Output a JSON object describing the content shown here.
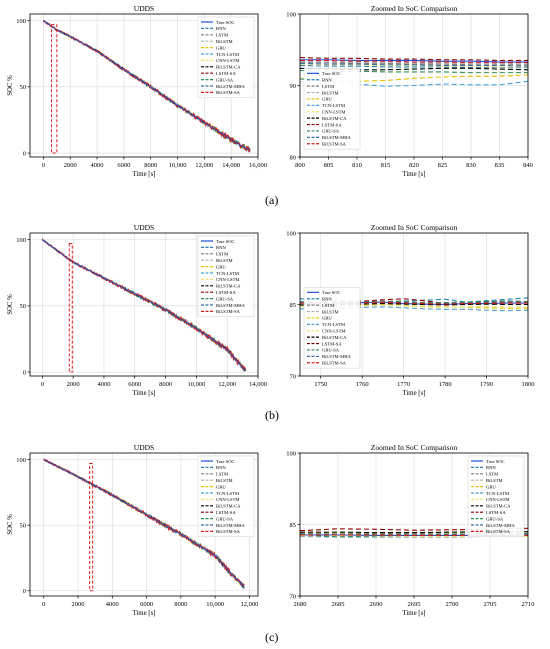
{
  "figure": {
    "sub_labels": [
      "(a)",
      "(b)",
      "(c)"
    ]
  },
  "chart_data": [
    {
      "id": "a-left",
      "type": "line",
      "title": "UDDS",
      "xlabel": "Time [s]",
      "ylabel": "SOC %",
      "xlim": [
        -1000,
        16000
      ],
      "ylim": [
        -3,
        105
      ],
      "xticks": [
        0,
        2000,
        4000,
        6000,
        8000,
        10000,
        12000,
        14000,
        16000
      ],
      "xtick_labels": [
        "0",
        "2000",
        "4000",
        "6000",
        "8000",
        "10,000",
        "12,000",
        "14,000",
        "16,000"
      ],
      "yticks": [
        0,
        50,
        100
      ],
      "ytick_labels": [
        "0",
        "50",
        "100"
      ],
      "grid": true,
      "legend_placement": "top-right",
      "series": [
        {
          "name": "True SOC",
          "points": [
            [
              0,
              100
            ],
            [
              1000,
              93
            ],
            [
              2000,
              88
            ],
            [
              4000,
              77
            ],
            [
              6000,
              63
            ],
            [
              8000,
              50
            ],
            [
              10000,
              36
            ],
            [
              12000,
              23
            ],
            [
              14000,
              10
            ],
            [
              15400,
              2
            ]
          ]
        }
      ],
      "zoom_box": {
        "x": [
          600,
          1000
        ],
        "y": [
          0,
          97
        ]
      }
    },
    {
      "id": "a-right",
      "type": "line",
      "title": "Zoomed In SoC Comparison",
      "xlabel": "Time [s]",
      "ylabel": "",
      "xlim": [
        800,
        840
      ],
      "ylim": [
        80,
        100
      ],
      "xticks": [
        800,
        805,
        810,
        815,
        820,
        825,
        830,
        835,
        840
      ],
      "xtick_labels": [
        "800",
        "805",
        "810",
        "815",
        "820",
        "825",
        "830",
        "835",
        "840"
      ],
      "yticks": [
        80,
        90,
        100
      ],
      "ytick_labels": [
        "80",
        "90",
        "100"
      ],
      "grid": true,
      "legend_placement": "left",
      "series": [
        {
          "name": "True SOC",
          "values": [
            93.6,
            93.6,
            93.5,
            93.5,
            93.5,
            93.4,
            93.4,
            93.3,
            93.3
          ]
        },
        {
          "name": "RNN",
          "values": [
            92.8,
            92.7,
            92.7,
            92.6,
            92.6,
            92.6,
            92.5,
            92.5,
            92.5
          ]
        },
        {
          "name": "LSTM",
          "values": [
            93.2,
            93.2,
            93.1,
            93.1,
            93.0,
            93.0,
            92.9,
            92.9,
            92.9
          ]
        },
        {
          "name": "BiLSTM",
          "values": [
            93.4,
            93.3,
            93.3,
            93.2,
            93.2,
            93.1,
            93.1,
            93.1,
            93.0
          ]
        },
        {
          "name": "GRU",
          "values": [
            91.0,
            90.8,
            90.6,
            90.7,
            91.0,
            91.2,
            91.3,
            91.3,
            91.5
          ]
        },
        {
          "name": "TCN-LSTM",
          "values": [
            90.9,
            90.6,
            90.2,
            89.9,
            90.0,
            90.2,
            90.1,
            90.1,
            90.6
          ]
        },
        {
          "name": "CNN-LSTM",
          "values": [
            93.0,
            92.9,
            92.9,
            92.8,
            92.8,
            92.7,
            92.7,
            92.6,
            92.6
          ]
        },
        {
          "name": "BiLSTM-CA",
          "values": [
            92.4,
            92.3,
            92.2,
            92.2,
            92.3,
            92.4,
            92.4,
            92.3,
            92.2
          ]
        },
        {
          "name": "LSTM-SA",
          "values": [
            93.9,
            93.8,
            93.8,
            93.7,
            93.7,
            93.6,
            93.6,
            93.5,
            93.5
          ]
        },
        {
          "name": "GRU-SA",
          "values": [
            92.1,
            92.0,
            92.0,
            91.9,
            91.9,
            91.9,
            91.8,
            91.8,
            91.8
          ]
        },
        {
          "name": "BiLSTM-MHA",
          "values": [
            93.1,
            93.0,
            93.0,
            92.9,
            92.9,
            92.8,
            92.8,
            92.8,
            92.7
          ]
        },
        {
          "name": "BiLSTM-SA",
          "values": [
            93.5,
            93.5,
            93.4,
            93.4,
            93.3,
            93.3,
            93.2,
            93.2,
            93.2
          ]
        }
      ]
    },
    {
      "id": "b-left",
      "type": "line",
      "title": "UDDS",
      "xlabel": "Time [s]",
      "ylabel": "SOC %",
      "xlim": [
        -800,
        14000
      ],
      "ylim": [
        -3,
        105
      ],
      "xticks": [
        0,
        2000,
        4000,
        6000,
        8000,
        10000,
        12000,
        14000
      ],
      "xtick_labels": [
        "0",
        "2000",
        "4000",
        "6000",
        "8000",
        "10,000",
        "12,000",
        "14,000"
      ],
      "yticks": [
        0,
        50,
        100
      ],
      "ytick_labels": [
        "0",
        "50",
        "100"
      ],
      "grid": true,
      "legend_placement": "top-right",
      "series": [
        {
          "name": "True SOC",
          "points": [
            [
              0,
              100
            ],
            [
              1750,
              85
            ],
            [
              2000,
              83
            ],
            [
              4000,
              71
            ],
            [
              6000,
              59
            ],
            [
              8000,
              47
            ],
            [
              10000,
              33
            ],
            [
              12000,
              17
            ],
            [
              13200,
              1
            ]
          ]
        }
      ],
      "zoom_box": {
        "x": [
          1750,
          1800
        ],
        "y": [
          0,
          97
        ]
      }
    },
    {
      "id": "b-right",
      "type": "line",
      "title": "Zoomed In SoC Comparison",
      "xlabel": "Time [s]",
      "ylabel": "",
      "xlim": [
        1745,
        1800
      ],
      "ylim": [
        70,
        100
      ],
      "xticks": [
        1750,
        1760,
        1770,
        1780,
        1790,
        1800
      ],
      "xtick_labels": [
        "1750",
        "1760",
        "1770",
        "1780",
        "1790",
        "1800"
      ],
      "yticks": [
        70,
        85,
        100
      ],
      "ytick_labels": [
        "70",
        "85",
        "100"
      ],
      "grid": true,
      "legend_placement": "left",
      "series": [
        {
          "name": "True SOC",
          "values": [
            85.2,
            85.1,
            85.2,
            85.4,
            85.5,
            85.2,
            85.1,
            85.0,
            85.2,
            85.2,
            85.3,
            85.3
          ]
        },
        {
          "name": "RNN",
          "values": [
            86.2,
            86.1,
            85.8,
            85.7,
            85.6,
            85.7,
            85.9,
            86.1,
            85.5,
            85.8,
            86.1,
            86.4
          ]
        },
        {
          "name": "LSTM",
          "values": [
            85.3,
            85.2,
            85.2,
            85.3,
            85.5,
            85.3,
            85.1,
            85.0,
            85.1,
            85.2,
            85.3,
            85.2
          ]
        },
        {
          "name": "BiLSTM",
          "values": [
            85.1,
            85.0,
            85.1,
            85.2,
            85.3,
            85.1,
            85.0,
            84.9,
            85.0,
            85.0,
            85.1,
            85.1
          ]
        },
        {
          "name": "GRU",
          "values": [
            84.7,
            84.6,
            84.7,
            84.9,
            85.0,
            84.8,
            84.6,
            84.5,
            84.4,
            84.3,
            84.2,
            84.2
          ]
        },
        {
          "name": "TCN-LSTM",
          "values": [
            84.1,
            84.0,
            84.2,
            84.4,
            84.5,
            84.3,
            84.1,
            84.0,
            84.0,
            83.8,
            83.7,
            83.8
          ]
        },
        {
          "name": "CNN-LSTM",
          "values": [
            84.8,
            84.7,
            84.6,
            84.7,
            84.9,
            84.7,
            84.5,
            84.4,
            84.5,
            84.6,
            84.5,
            84.5
          ]
        },
        {
          "name": "BiLSTM-CA",
          "values": [
            84.9,
            84.8,
            85.0,
            85.1,
            85.2,
            85.1,
            85.0,
            84.9,
            85.0,
            85.1,
            85.0,
            85.0
          ]
        },
        {
          "name": "LSTM-SA",
          "values": [
            85.5,
            85.4,
            85.5,
            85.7,
            86.0,
            86.2,
            85.8,
            85.2,
            85.4,
            85.6,
            85.7,
            85.6
          ]
        },
        {
          "name": "GRU-SA",
          "values": [
            85.6,
            85.5,
            85.6,
            85.6,
            85.7,
            85.6,
            85.4,
            85.4,
            85.5,
            85.6,
            85.7,
            85.6
          ]
        },
        {
          "name": "BiLSTM-MHA",
          "values": [
            85.4,
            85.3,
            85.4,
            85.5,
            85.6,
            85.4,
            85.2,
            85.2,
            85.3,
            85.4,
            85.5,
            85.4
          ]
        },
        {
          "name": "BiLSTM-SA",
          "values": [
            85.3,
            85.2,
            85.3,
            85.4,
            85.5,
            85.3,
            85.2,
            85.1,
            85.2,
            85.3,
            85.3,
            85.3
          ]
        }
      ]
    },
    {
      "id": "c-left",
      "type": "line",
      "title": "UDDS",
      "xlabel": "Time [s]",
      "ylabel": "SOC %",
      "xlim": [
        -800,
        12500
      ],
      "ylim": [
        -4,
        105
      ],
      "xticks": [
        0,
        2000,
        4000,
        6000,
        8000,
        10000,
        12000
      ],
      "xtick_labels": [
        "0",
        "2000",
        "4000",
        "6000",
        "8000",
        "10,000",
        "12,000"
      ],
      "yticks": [
        0,
        50,
        100
      ],
      "ytick_labels": [
        "0",
        "50",
        "100"
      ],
      "grid": true,
      "legend_placement": "top-right",
      "series": [
        {
          "name": "True SOC",
          "points": [
            [
              0,
              100
            ],
            [
              2000,
              87
            ],
            [
              2700,
              82
            ],
            [
              4000,
              73
            ],
            [
              6000,
              58
            ],
            [
              8000,
              43
            ],
            [
              10000,
              27
            ],
            [
              11000,
              12
            ],
            [
              11700,
              3
            ]
          ]
        }
      ],
      "zoom_box": {
        "x": [
          2680,
          2710
        ],
        "y": [
          0,
          97
        ]
      }
    },
    {
      "id": "c-right",
      "type": "line",
      "title": "Zoomed In SoC Comparison",
      "xlabel": "Time [s]",
      "ylabel": "",
      "xlim": [
        2680,
        2710
      ],
      "ylim": [
        70,
        100
      ],
      "xticks": [
        2680,
        2685,
        2690,
        2695,
        2700,
        2705,
        2710
      ],
      "xtick_labels": [
        "2680",
        "2685",
        "2690",
        "2695",
        "2700",
        "2705",
        "2710"
      ],
      "yticks": [
        70,
        85,
        100
      ],
      "ytick_labels": [
        "70",
        "85",
        "100"
      ],
      "grid": true,
      "legend_placement": "top-right",
      "series": [
        {
          "name": "True SOC",
          "values": [
            82.8,
            82.8,
            82.7,
            82.7,
            82.7,
            82.7,
            82.6
          ]
        },
        {
          "name": "RNN",
          "values": [
            82.5,
            82.4,
            82.4,
            82.4,
            82.4,
            82.5,
            82.6
          ]
        },
        {
          "name": "LSTM",
          "values": [
            83.0,
            82.9,
            82.9,
            82.9,
            82.8,
            82.8,
            82.8
          ]
        },
        {
          "name": "BiLSTM",
          "values": [
            82.9,
            82.9,
            82.8,
            82.8,
            82.8,
            82.7,
            82.7
          ]
        },
        {
          "name": "GRU",
          "values": [
            83.3,
            83.3,
            83.2,
            83.2,
            83.3,
            83.4,
            83.4
          ]
        },
        {
          "name": "TCN-LSTM",
          "values": [
            82.7,
            82.6,
            82.6,
            82.6,
            82.6,
            82.6,
            82.6
          ]
        },
        {
          "name": "CNN-LSTM",
          "values": [
            82.6,
            82.6,
            82.5,
            82.5,
            82.5,
            82.5,
            82.5
          ]
        },
        {
          "name": "BiLSTM-CA",
          "values": [
            83.4,
            83.4,
            83.3,
            83.3,
            83.4,
            83.5,
            83.5
          ]
        },
        {
          "name": "LSTM-SA",
          "values": [
            83.7,
            84.1,
            84.0,
            83.8,
            83.9,
            84.0,
            84.2
          ]
        },
        {
          "name": "GRU-SA",
          "values": [
            82.9,
            82.4,
            82.6,
            82.7,
            82.8,
            82.9,
            83.0
          ]
        },
        {
          "name": "BiLSTM-MHA",
          "values": [
            83.1,
            83.0,
            83.0,
            83.0,
            83.0,
            83.1,
            83.1
          ]
        },
        {
          "name": "BiLSTM-SA",
          "values": [
            82.8,
            82.8,
            82.8,
            82.7,
            82.7,
            82.7,
            82.7
          ]
        }
      ]
    }
  ],
  "style": {
    "series_styles": [
      {
        "color": "#1f4fd6",
        "dash": ""
      },
      {
        "color": "#2a7fb8",
        "dash": "5,3"
      },
      {
        "color": "#7f7f7f",
        "dash": "5,3"
      },
      {
        "color": "#b0b0b0",
        "dash": "5,3"
      },
      {
        "color": "#e6c200",
        "dash": "5,3"
      },
      {
        "color": "#4aa3d8",
        "dash": "5,3"
      },
      {
        "color": "#f2e27a",
        "dash": "5,3"
      },
      {
        "color": "#000000",
        "dash": "5,3"
      },
      {
        "color": "#8b0000",
        "dash": "5,3"
      },
      {
        "color": "#2e8b57",
        "dash": "5,3"
      },
      {
        "color": "#3a6ea5",
        "dash": "5,3"
      },
      {
        "color": "#e01a1a",
        "dash": "5,3"
      }
    ],
    "left_panel_main_color": "#d62020",
    "zoom_box_color": "#e01a1a"
  }
}
